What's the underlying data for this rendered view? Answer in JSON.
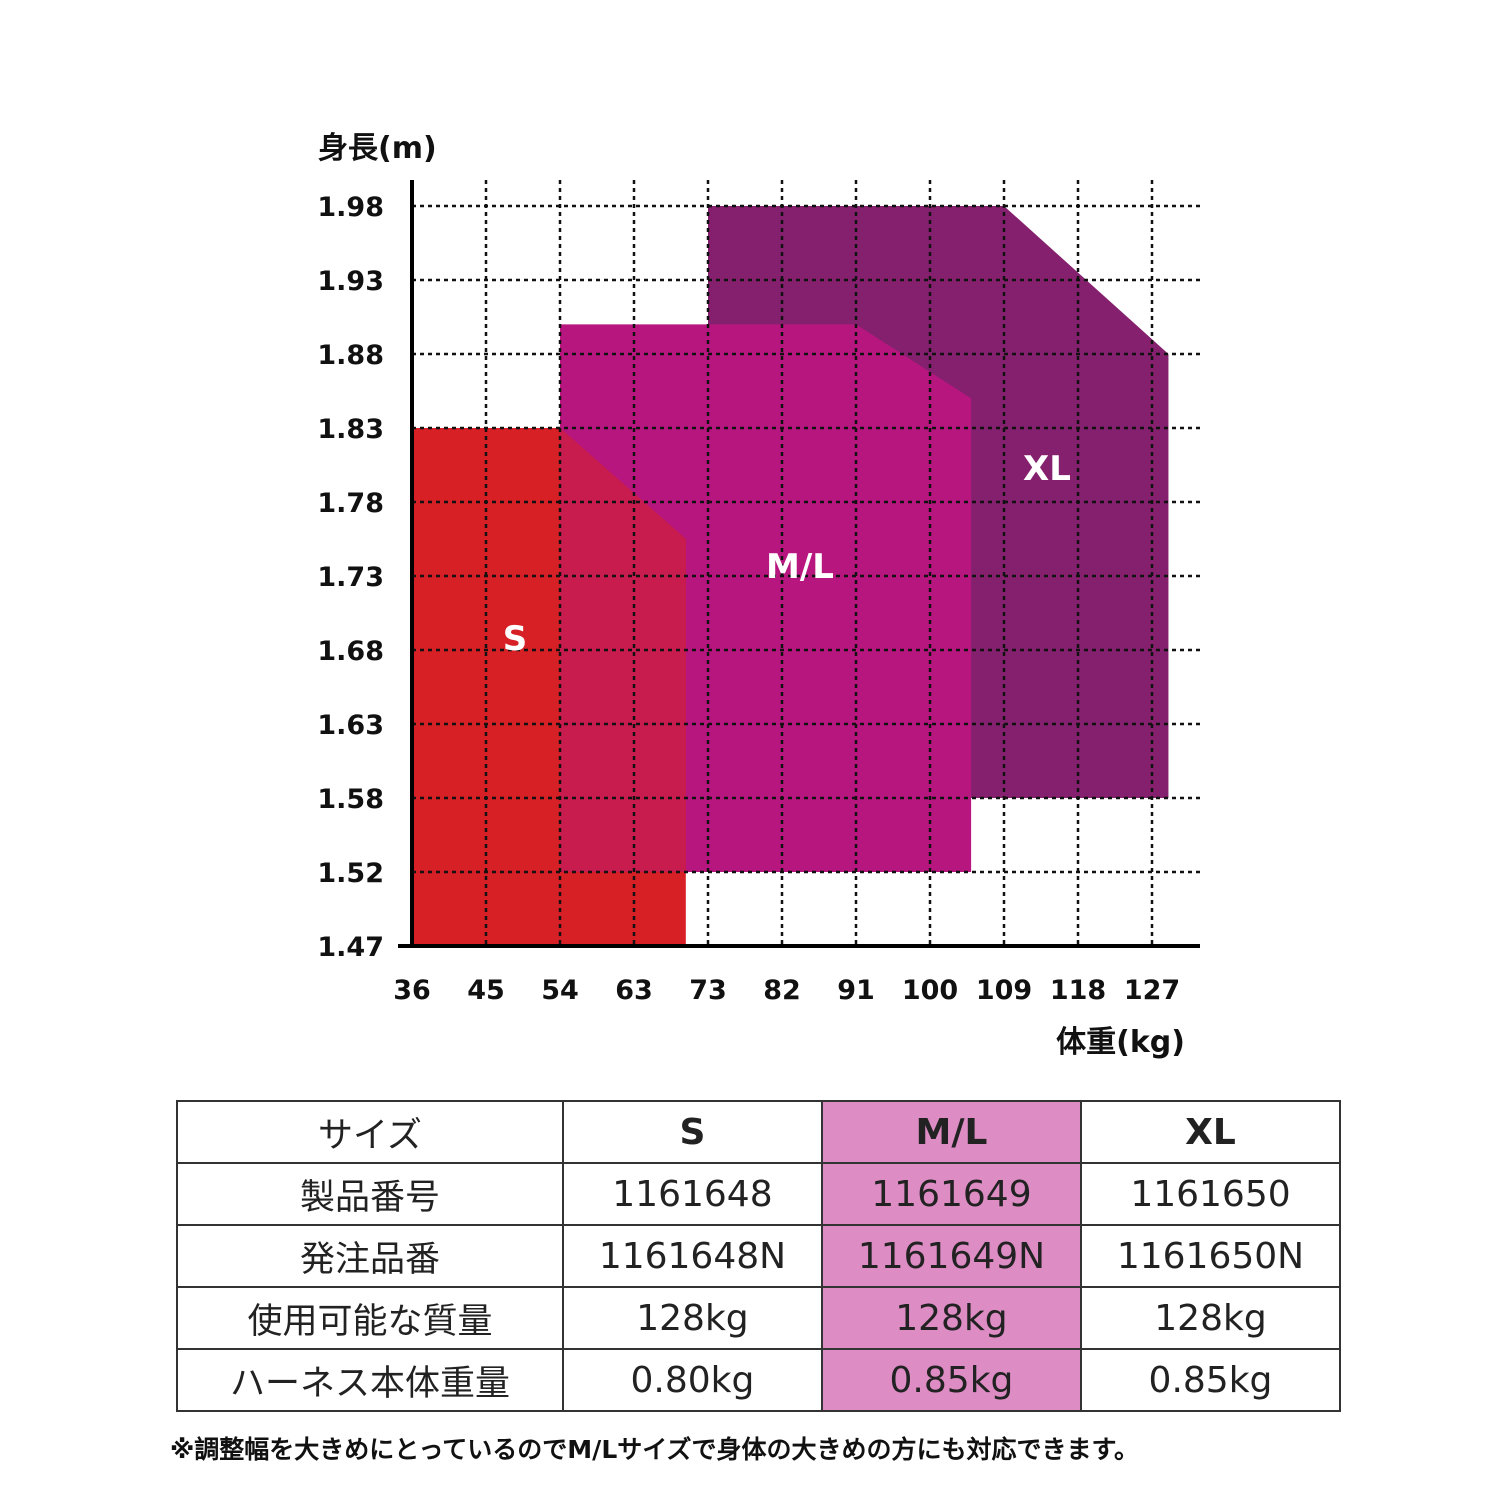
{
  "chart_data": {
    "type": "area",
    "xlabel": "体重(kg)",
    "ylabel": "身長(m)",
    "x_ticks": [
      36,
      45,
      54,
      63,
      73,
      82,
      91,
      100,
      109,
      118,
      127
    ],
    "y_ticks": [
      1.47,
      1.52,
      1.58,
      1.63,
      1.68,
      1.73,
      1.78,
      1.83,
      1.88,
      1.93,
      1.98
    ],
    "y_tick_labels": [
      "1.47",
      "1.52",
      "1.58",
      "1.63",
      "1.68",
      "1.73",
      "1.78",
      "1.83",
      "1.88",
      "1.93",
      "1.98"
    ],
    "grid": true,
    "series": [
      {
        "name": "XL",
        "color": "#85206e",
        "polygon": [
          [
            73,
            1.58
          ],
          [
            73,
            1.98
          ],
          [
            109,
            1.98
          ],
          [
            129,
            1.88
          ],
          [
            129,
            1.58
          ]
        ]
      },
      {
        "name": "M/L",
        "color": "#b8167f",
        "polygon": [
          [
            54,
            1.52
          ],
          [
            54,
            1.9
          ],
          [
            91,
            1.9
          ],
          [
            105,
            1.85
          ],
          [
            105,
            1.52
          ]
        ]
      },
      {
        "name": "S",
        "color": "#d71f26",
        "polygon": [
          [
            36,
            1.47
          ],
          [
            36,
            1.83
          ],
          [
            54,
            1.83
          ],
          [
            70,
            1.755
          ],
          [
            70,
            1.47
          ]
        ]
      }
    ],
    "overlap_color": "#c81b4e"
  },
  "table": {
    "header": [
      "サイズ",
      "S",
      "M/L",
      "XL"
    ],
    "rows": [
      [
        "製品番号",
        "1161648",
        "1161649",
        "1161650"
      ],
      [
        "発注品番",
        "1161648N",
        "1161649N",
        "1161650N"
      ],
      [
        "使用可能な質量",
        "128kg",
        "128kg",
        "128kg"
      ],
      [
        "ハーネス本体重量",
        "0.80kg",
        "0.85kg",
        "0.85kg"
      ]
    ],
    "highlight_color": "#dd8cc4"
  },
  "note": "※調整幅を大きめにとっているのでM/Lサイズで身体の大きめの方にも対応できます。"
}
